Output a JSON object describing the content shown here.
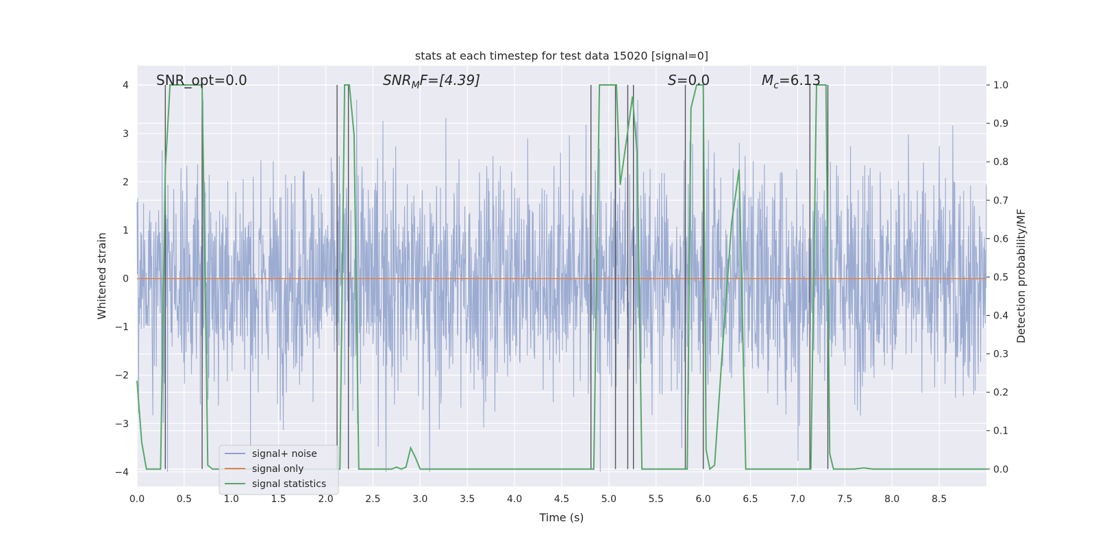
{
  "chart_data": {
    "type": "line",
    "title": "stats at each timestep for test data 15020 [signal=0]",
    "xlabel": "Time (s)",
    "ylabel_left": "Whitened strain",
    "ylabel_right": "Detection probability/MF",
    "xlim": [
      0.0,
      9.0
    ],
    "ylim_left": [
      -4.3,
      4.4
    ],
    "ylim_right": [
      -0.045,
      1.05
    ],
    "xticks": [
      "0.0",
      "0.5",
      "1.0",
      "1.5",
      "2.0",
      "2.5",
      "3.0",
      "3.5",
      "4.0",
      "4.5",
      "5.0",
      "5.5",
      "6.0",
      "6.5",
      "7.0",
      "7.5",
      "8.0",
      "8.5"
    ],
    "yticks_left": [
      "-4",
      "-3",
      "-2",
      "-1",
      "0",
      "1",
      "2",
      "3",
      "4"
    ],
    "yticks_right": [
      "0.0",
      "0.1",
      "0.2",
      "0.3",
      "0.4",
      "0.5",
      "0.6",
      "0.7",
      "0.8",
      "0.9",
      "1.0"
    ],
    "grid": true,
    "legend_position": "lower-left",
    "annotations": {
      "snr_opt": "SNR_opt=0.0",
      "snr_mf_prefix": "SNR",
      "snr_mf_sub": "M",
      "snr_mf_rest": "F=[4.39]",
      "s_label": "S",
      "s_value": "=0.0",
      "mc_label": "M",
      "mc_sub": "c",
      "mc_value": "=6.13"
    },
    "series": [
      {
        "name": "signal+ noise",
        "color": "#8da0cb",
        "typical_range": [
          -4.0,
          3.7
        ]
      },
      {
        "name": "signal only",
        "color": "#dd8452",
        "values_constant": 0.0
      },
      {
        "name": "signal statistics",
        "color": "#55a868",
        "x": [
          0.0,
          0.05,
          0.1,
          0.25,
          0.3,
          0.35,
          0.4,
          0.5,
          0.6,
          0.69,
          0.72,
          0.75,
          0.8,
          0.9,
          1.0,
          1.2,
          1.5,
          2.0,
          2.1,
          2.15,
          2.2,
          2.25,
          2.3,
          2.35,
          2.4,
          2.6,
          2.7,
          2.75,
          2.8,
          2.85,
          2.9,
          2.95,
          3.0,
          3.5,
          4.0,
          4.5,
          4.8,
          4.84,
          4.9,
          5.0,
          5.08,
          5.12,
          5.2,
          5.25,
          5.3,
          5.35,
          5.5,
          5.8,
          5.83,
          5.87,
          5.93,
          6.0,
          6.03,
          6.07,
          6.12,
          6.2,
          6.3,
          6.38,
          6.45,
          6.5,
          6.6,
          6.8,
          7.0,
          7.1,
          7.14,
          7.2,
          7.3,
          7.34,
          7.38,
          7.45,
          7.6,
          7.7,
          7.8,
          8.0,
          8.5,
          9.0
        ],
        "values": [
          0.23,
          0.07,
          0.0,
          0.0,
          0.78,
          1.0,
          1.0,
          1.0,
          1.0,
          1.0,
          0.53,
          0.01,
          0.0,
          0.0,
          0.0,
          0.0,
          0.0,
          0.0,
          0.0,
          0.0,
          1.0,
          1.0,
          0.87,
          0.0,
          0.0,
          0.0,
          0.0,
          0.005,
          0.0,
          0.005,
          0.055,
          0.03,
          0.0,
          0.0,
          0.0,
          0.0,
          0.0,
          0.0,
          1.0,
          1.0,
          1.0,
          0.74,
          0.88,
          0.97,
          0.82,
          0.0,
          0.0,
          0.0,
          0.0,
          0.94,
          1.0,
          1.0,
          0.05,
          0.0,
          0.01,
          0.3,
          0.64,
          0.78,
          0.0,
          0.0,
          0.0,
          0.0,
          0.0,
          0.0,
          0.0,
          1.0,
          1.0,
          0.04,
          0.0,
          0.0,
          0.0,
          0.003,
          0.0,
          0.0,
          0.0,
          0.0
        ]
      }
    ],
    "vertical_markers": [
      0.3,
      0.69,
      2.12,
      2.24,
      4.81,
      5.07,
      5.2,
      5.26,
      5.81,
      6.0,
      7.13,
      7.32
    ],
    "legend": [
      "signal+ noise",
      "signal only",
      "signal statistics"
    ]
  }
}
